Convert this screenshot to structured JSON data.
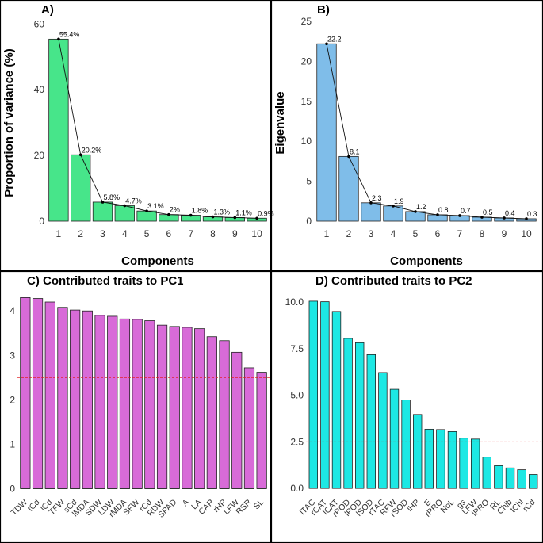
{
  "colors": {
    "variance": "#47e58a",
    "eigen": "#7fbde9",
    "pc1": "#d86bd8",
    "pc2": "#1de8e4",
    "refline": "#e41a1c",
    "border": "#000000"
  },
  "chart_data": [
    {
      "type": "bar",
      "panel": "A)",
      "title": "",
      "xlabel": "Components",
      "ylabel": "Proportion of variance (%)",
      "categories": [
        "1",
        "2",
        "3",
        "4",
        "5",
        "6",
        "7",
        "8",
        "9",
        "10"
      ],
      "values": [
        55.4,
        20.2,
        5.8,
        4.7,
        3.1,
        2.0,
        1.8,
        1.3,
        1.1,
        0.9
      ],
      "labels": [
        "55.4%",
        "20.2%",
        "5.8%",
        "4.7%",
        "3.1%",
        "2%",
        "1.8%",
        "1.3%",
        "1.1%",
        "0.9%"
      ],
      "yticks": [
        0,
        20,
        40,
        60
      ],
      "ylim": [
        0,
        62
      ],
      "line_overlay": true
    },
    {
      "type": "bar",
      "panel": "B)",
      "title": "",
      "xlabel": "Components",
      "ylabel": "Eigenvalue",
      "categories": [
        "1",
        "2",
        "3",
        "4",
        "5",
        "6",
        "7",
        "8",
        "9",
        "10"
      ],
      "values": [
        22.2,
        8.1,
        2.3,
        1.9,
        1.2,
        0.8,
        0.7,
        0.5,
        0.4,
        0.3
      ],
      "labels": [
        "22.2",
        "8.1",
        "2.3",
        "1.9",
        "1.2",
        "0.8",
        "0.7",
        "0.5",
        "0.4",
        "0.3"
      ],
      "yticks": [
        0,
        5,
        10,
        15,
        20,
        25
      ],
      "ylim": [
        0,
        25.5
      ],
      "line_overlay": true
    },
    {
      "type": "bar",
      "panel": "C)",
      "title": "Contributed traits to PC1",
      "xlabel": "",
      "ylabel": "",
      "categories": [
        "TDW",
        "tCd",
        "lCd",
        "TFW",
        "sCd",
        "lMDA",
        "SDW",
        "LDW",
        "rMDA",
        "SFW",
        "rCd",
        "RDW",
        "SPAD",
        "A",
        "LA",
        "CAR",
        "rHP",
        "LFW",
        "RSR",
        "SL"
      ],
      "values": [
        4.3,
        4.28,
        4.2,
        4.08,
        4.02,
        4.0,
        3.9,
        3.88,
        3.82,
        3.81,
        3.78,
        3.68,
        3.65,
        3.63,
        3.6,
        3.42,
        3.33,
        3.07,
        2.72,
        2.62
      ],
      "yticks": [
        0,
        1,
        2,
        3,
        4
      ],
      "ylim": [
        -0.1,
        4.45
      ],
      "reference_line": 2.5
    },
    {
      "type": "bar",
      "panel": "D)",
      "title": "Contributed traits to PC2",
      "xlabel": "",
      "ylabel": "",
      "categories": [
        "lTAC",
        "rCAT",
        "lCAT",
        "rPOD",
        "lPOD",
        "lSOD",
        "rTAC",
        "RFW",
        "rSOD",
        "lHP",
        "E",
        "rPRO",
        "NoL",
        "gs",
        "LFW",
        "lPRO",
        "RL",
        "Chlb",
        "tChl",
        "rCd"
      ],
      "values": [
        10.05,
        10.02,
        9.5,
        8.05,
        7.82,
        7.18,
        6.22,
        5.32,
        4.75,
        3.97,
        3.18,
        3.16,
        3.05,
        2.7,
        2.65,
        1.68,
        1.22,
        1.1,
        1.0,
        0.75
      ],
      "yticks": [
        "0.0",
        "2.5",
        "5.0",
        "7.5",
        "10.0"
      ],
      "ylim": [
        -0.25,
        10.6
      ],
      "reference_line": 2.5
    }
  ]
}
